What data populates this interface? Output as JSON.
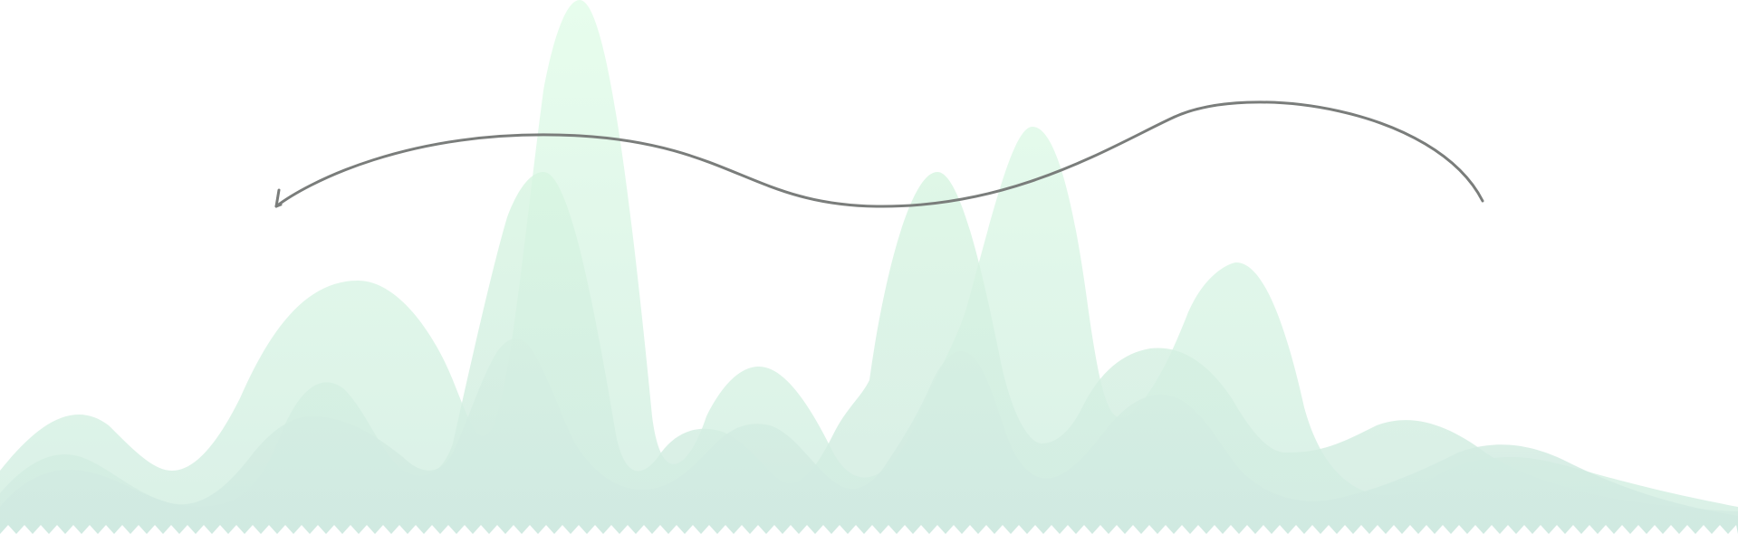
{
  "illustration": {
    "description_icons": [
      "mountain-waves-decoration",
      "curved-arrow-icon"
    ],
    "colors": {
      "background": "#ffffff",
      "wave_top": "#e6fbec",
      "wave_mid": "#d9f4e4",
      "wave_bottom": "#d3ede3",
      "arrow_stroke": "#7a7d7b",
      "zigzag_fill": "#ffffff"
    }
  }
}
